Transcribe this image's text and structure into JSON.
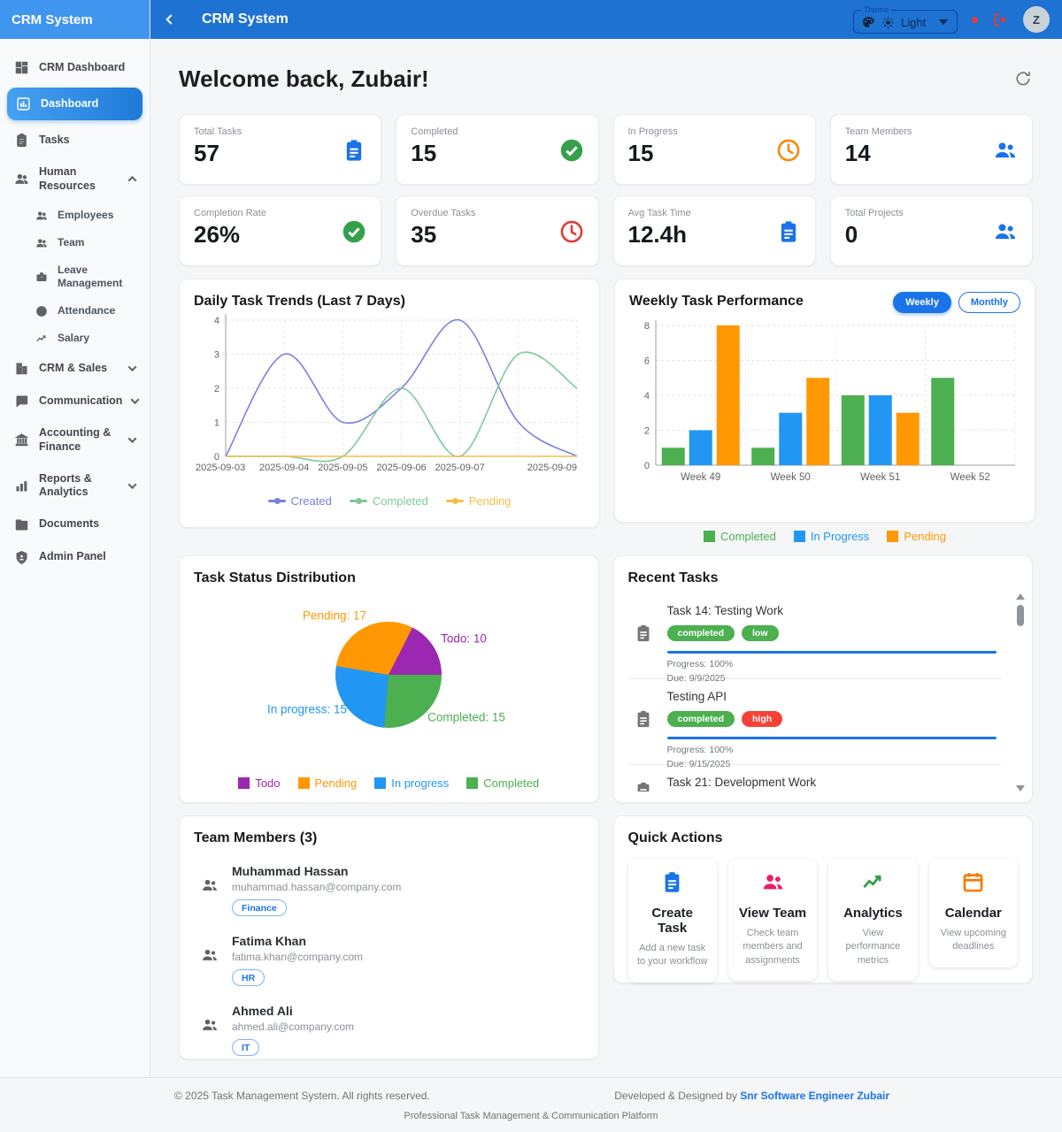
{
  "colors": {
    "topbar_blue": "#1d72d2",
    "sidebar_header_blue": "#4095ee",
    "accent_blue": "#1a73e8",
    "success_green": "#4caf50",
    "warning_orange": "#ff9800",
    "danger_red": "#f44336",
    "purple": "#9c27b0"
  },
  "sidebar": {
    "title": "CRM System",
    "items": [
      {
        "label": "CRM Dashboard"
      },
      {
        "label": "Dashboard",
        "active": true
      },
      {
        "label": "Tasks"
      },
      {
        "label": "Human Resources",
        "expanded": true
      },
      {
        "label": "Employees"
      },
      {
        "label": "Team"
      },
      {
        "label": "Leave Management"
      },
      {
        "label": "Attendance"
      },
      {
        "label": "Salary"
      },
      {
        "label": "CRM & Sales"
      },
      {
        "label": "Communication"
      },
      {
        "label": "Accounting & Finance"
      },
      {
        "label": "Reports & Analytics"
      },
      {
        "label": "Documents"
      },
      {
        "label": "Admin Panel"
      }
    ]
  },
  "header": {
    "title": "CRM System",
    "theme_label": "Theme",
    "theme_value": "Light",
    "avatar_initial": "Z"
  },
  "welcome": {
    "title": "Welcome back, Zubair!"
  },
  "stats": [
    {
      "label": "Total Tasks",
      "value": "57",
      "icon": "clipboard-icon"
    },
    {
      "label": "Completed",
      "value": "15",
      "icon": "check-circle-icon"
    },
    {
      "label": "In Progress",
      "value": "15",
      "icon": "clock-icon"
    },
    {
      "label": "Team Members",
      "value": "14",
      "icon": "people-icon"
    },
    {
      "label": "Completion Rate",
      "value": "26%",
      "icon": "check-circle-icon"
    },
    {
      "label": "Overdue Tasks",
      "value": "35",
      "icon": "clock-icon"
    },
    {
      "label": "Avg Task Time",
      "value": "12.4h",
      "icon": "clipboard-icon"
    },
    {
      "label": "Total Projects",
      "value": "0",
      "icon": "people-icon"
    }
  ],
  "chart_data": [
    {
      "type": "line",
      "title": "Daily Task Trends (Last 7 Days)",
      "x": [
        "2025-09-03",
        "2025-09-04",
        "2025-09-05",
        "2025-09-06",
        "2025-09-07",
        "2025-09-08",
        "2025-09-09"
      ],
      "x_tick_labels": [
        "2025-09-03",
        "2025-09-04",
        "2025-09-05",
        "2025-09-06",
        "2025-09-07",
        "",
        "2025-09-09"
      ],
      "series": [
        {
          "name": "Created",
          "color": "#7b7fe0",
          "values": [
            0,
            3,
            1,
            2,
            4,
            1,
            0
          ]
        },
        {
          "name": "Completed",
          "color": "#7fc99a",
          "values": [
            0,
            0,
            0,
            2,
            0,
            3,
            2
          ]
        },
        {
          "name": "Pending",
          "color": "#f6bd4a",
          "values": [
            0,
            0,
            0,
            0,
            0,
            0,
            0
          ]
        }
      ],
      "ylim": [
        0,
        4
      ],
      "yticks": [
        0,
        1,
        2,
        3,
        4
      ],
      "grid": true,
      "legend_position": "bottom"
    },
    {
      "type": "bar",
      "title": "Weekly Task Performance",
      "categories": [
        "Week 49",
        "Week 50",
        "Week 51",
        "Week 52"
      ],
      "series": [
        {
          "name": "Completed",
          "color": "#4caf50",
          "values": [
            1,
            1,
            4,
            5
          ]
        },
        {
          "name": "In Progress",
          "color": "#2196f3",
          "values": [
            2,
            3,
            4,
            0
          ]
        },
        {
          "name": "Pending",
          "color": "#ff9800",
          "values": [
            8,
            5,
            3,
            0
          ]
        }
      ],
      "ylim": [
        0,
        8
      ],
      "yticks": [
        0,
        2,
        4,
        6,
        8
      ],
      "grid": true,
      "legend_position": "bottom",
      "toggles": [
        "Weekly",
        "Monthly"
      ],
      "active_toggle": "Weekly"
    },
    {
      "type": "pie",
      "title": "Task Status Distribution",
      "labels": [
        "Todo",
        "Pending",
        "In progress",
        "Completed"
      ],
      "values": [
        10,
        17,
        15,
        15
      ],
      "colors": [
        "#9c27b0",
        "#ff9800",
        "#2196f3",
        "#4caf50"
      ],
      "slice_labels": [
        "Todo: 10",
        "Pending: 17",
        "In progress: 15",
        "Completed: 15"
      ],
      "clockwise_from_3oclock": [
        "Completed",
        "In progress",
        "Pending",
        "Todo"
      ],
      "legend_position": "bottom"
    }
  ],
  "recent_tasks": {
    "title": "Recent Tasks",
    "items": [
      {
        "title": "Task 14: Testing Work",
        "status": "completed",
        "priority": "low",
        "progress": "Progress: 100%",
        "due": "Due: 9/9/2025"
      },
      {
        "title": "Testing API",
        "status": "completed",
        "priority": "high",
        "progress": "Progress: 100%",
        "due": "Due: 9/15/2025"
      },
      {
        "title": "Task 21: Development Work"
      }
    ]
  },
  "team": {
    "title": "Team Members (3)",
    "members": [
      {
        "name": "Muhammad Hassan",
        "email": "muhammad.hassan@company.com",
        "dept": "Finance"
      },
      {
        "name": "Fatima Khan",
        "email": "fatima.khan@company.com",
        "dept": "HR"
      },
      {
        "name": "Ahmed Ali",
        "email": "ahmed.ali@company.com",
        "dept": "IT"
      }
    ]
  },
  "quick_actions": {
    "title": "Quick Actions",
    "items": [
      {
        "label": "Create Task",
        "desc": "Add a new task to your workflow",
        "icon": "clipboard-icon"
      },
      {
        "label": "View Team",
        "desc": "Check team members and assignments",
        "icon": "people-icon"
      },
      {
        "label": "Analytics",
        "desc": "View performance metrics",
        "icon": "trend-up-icon"
      },
      {
        "label": "Calendar",
        "desc": "View upcoming deadlines",
        "icon": "calendar-icon"
      }
    ]
  },
  "footer": {
    "copyright": "© 2025 Task Management System. All rights reserved.",
    "developed_prefix": "Developed & Designed by ",
    "developer_link": "Snr Software Engineer Zubair",
    "tagline": "Professional Task Management & Communication Platform"
  }
}
